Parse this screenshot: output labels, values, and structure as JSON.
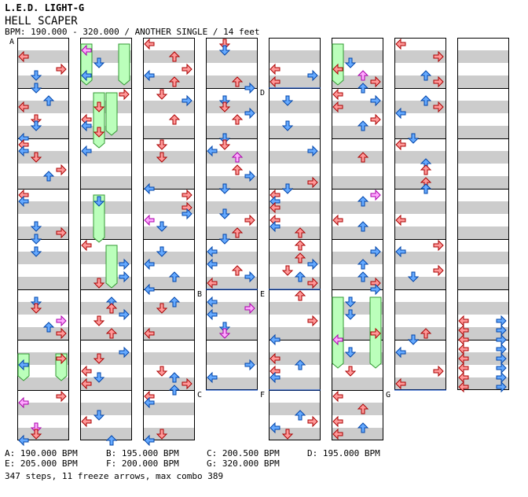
{
  "header": {
    "title": "L.E.D. LIGHT-G",
    "song": "HELL SCAPER",
    "meta": "BPM: 190.000 - 320.000 / ANOTHER SINGLE / 14 feet"
  },
  "markers": [
    "A",
    "B",
    "C",
    "D",
    "E",
    "F",
    "G"
  ],
  "footer": {
    "bpm": [
      "A: 190.000 BPM",
      "B: 195.000 BPM",
      "C: 200.500 BPM",
      "D: 195.000 BPM",
      "E: 205.000 BPM",
      "F: 200.000 BPM",
      "G: 320.000 BPM"
    ],
    "stats": "347 steps, 11 freeze arrows, max combo 389"
  },
  "colors": {
    "red_arrow": "#ff9999",
    "blue_arrow": "#66aaff",
    "pink_arrow": "#ffaaff",
    "freeze": "#bbffbb",
    "stripe": "#cccccc"
  }
}
